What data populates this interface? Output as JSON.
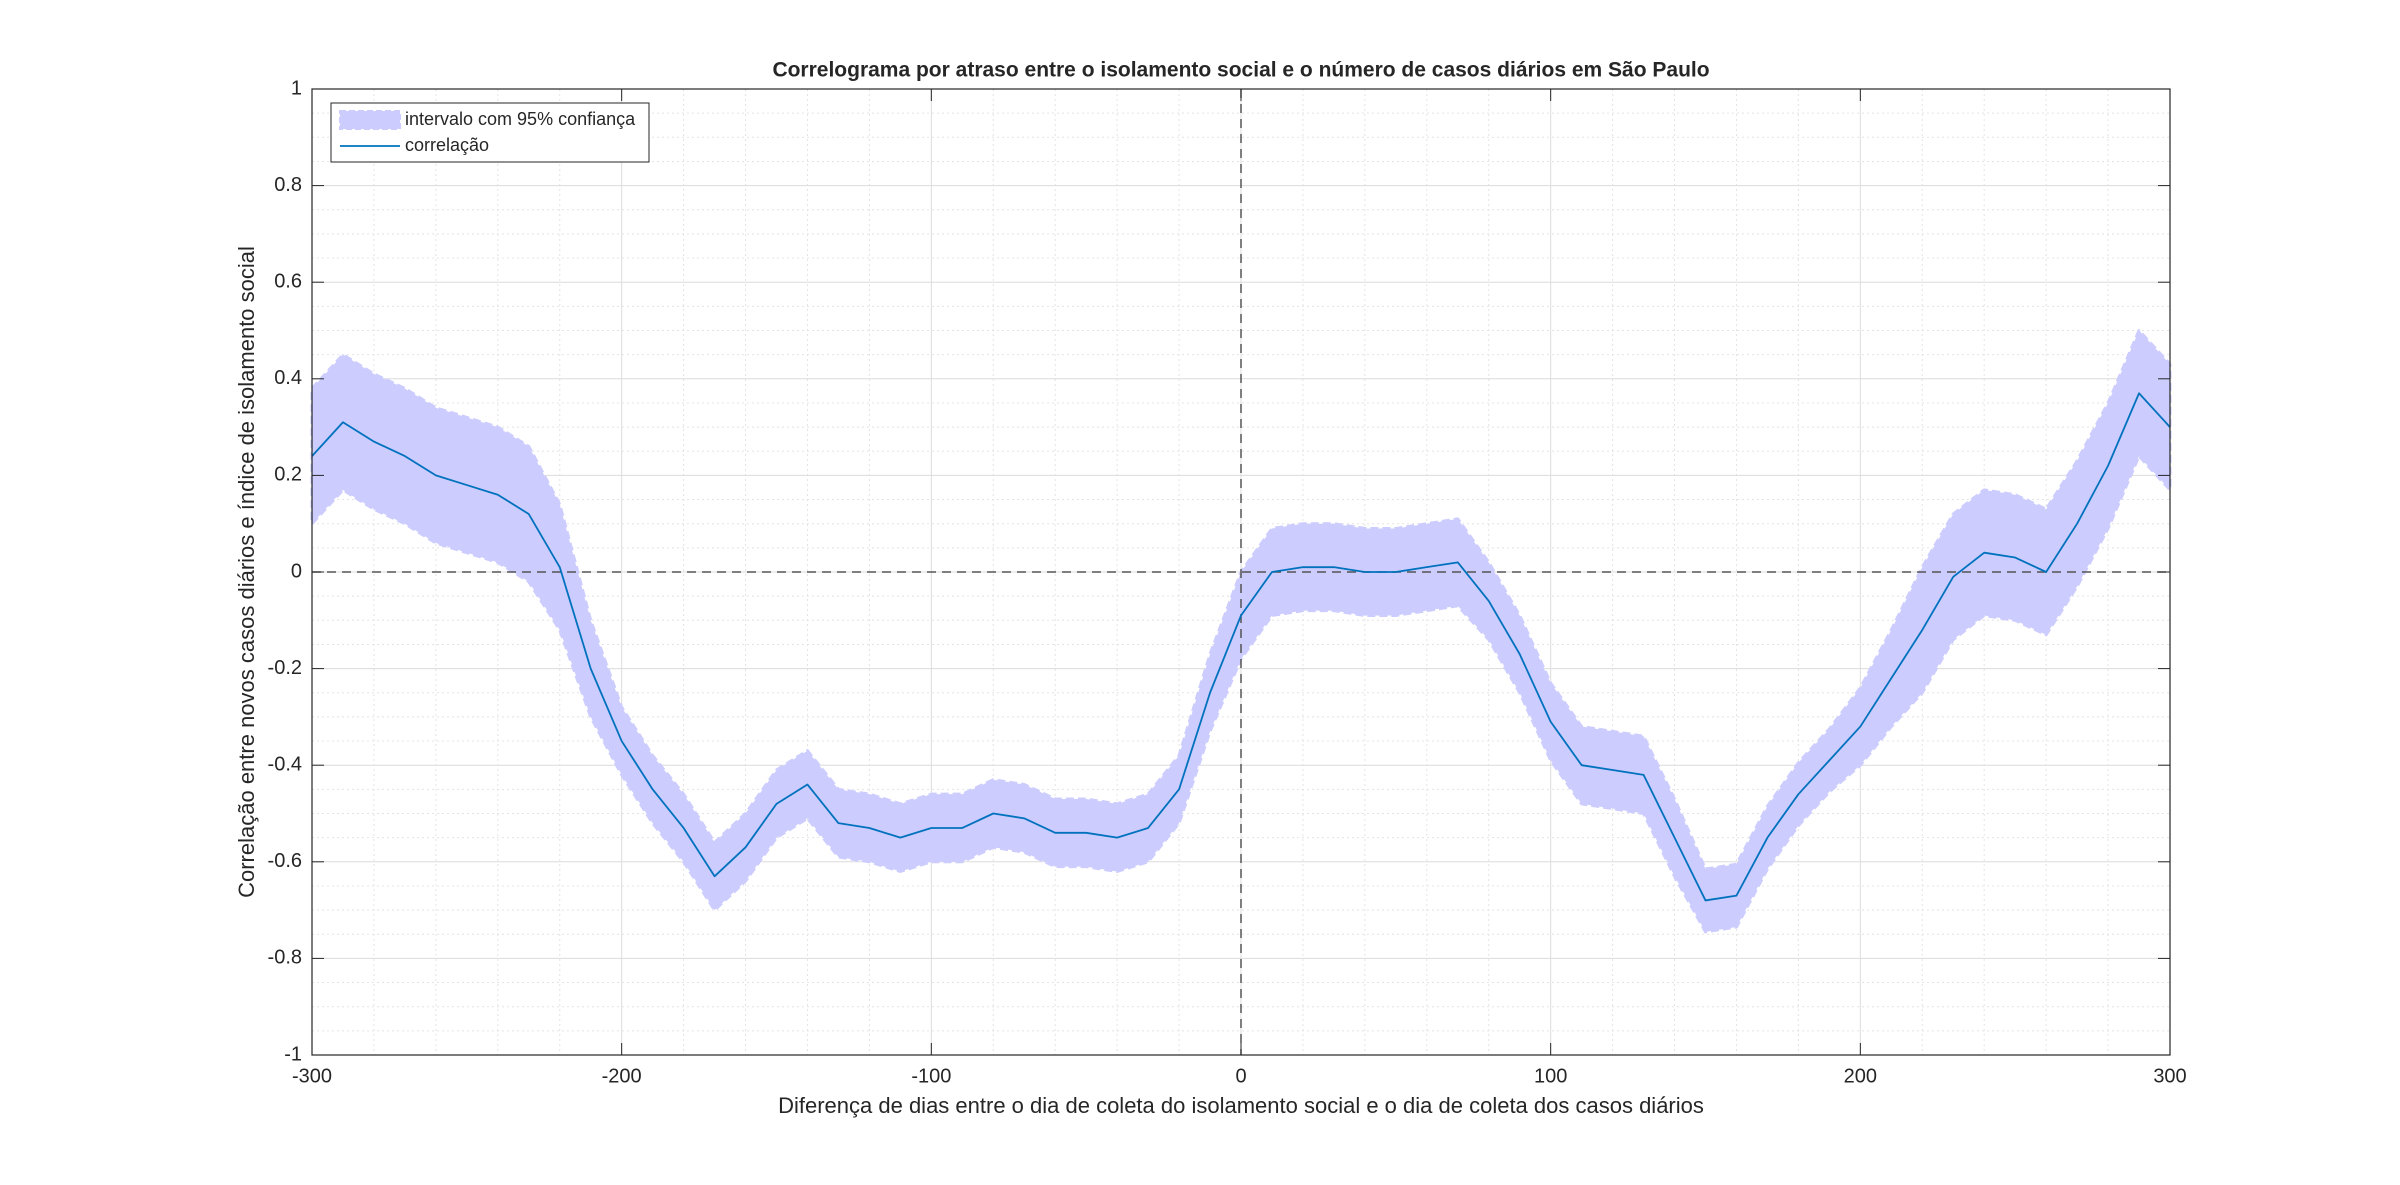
{
  "chart_data": {
    "type": "band-line",
    "title": "Correlograma por atraso entre o isolamento social e o número de casos diários em São Paulo",
    "xlabel": "Diferença de dias entre o dia de coleta do isolamento social e o dia de coleta dos casos diários",
    "ylabel": "Correlação entre novos casos diários e índice de isolamento social",
    "x": [
      -300,
      -290,
      -280,
      -270,
      -260,
      -250,
      -240,
      -230,
      -220,
      -210,
      -200,
      -190,
      -180,
      -170,
      -160,
      -150,
      -140,
      -130,
      -120,
      -110,
      -100,
      -90,
      -80,
      -70,
      -60,
      -50,
      -40,
      -30,
      -20,
      -10,
      0,
      10,
      20,
      30,
      40,
      50,
      60,
      70,
      80,
      90,
      100,
      110,
      120,
      130,
      140,
      150,
      160,
      170,
      180,
      190,
      200,
      210,
      220,
      230,
      240,
      250,
      260,
      270,
      280,
      290,
      300
    ],
    "series": [
      {
        "name": "intervalo com 95% confiança",
        "color": "#ccccff",
        "upper": [
          0.38,
          0.45,
          0.41,
          0.38,
          0.34,
          0.32,
          0.3,
          0.26,
          0.14,
          -0.1,
          -0.28,
          -0.38,
          -0.46,
          -0.56,
          -0.5,
          -0.41,
          -0.37,
          -0.45,
          -0.46,
          -0.48,
          -0.46,
          -0.46,
          -0.43,
          -0.44,
          -0.47,
          -0.47,
          -0.48,
          -0.46,
          -0.38,
          -0.17,
          0.0,
          0.09,
          0.1,
          0.1,
          0.09,
          0.09,
          0.1,
          0.11,
          0.02,
          -0.09,
          -0.23,
          -0.32,
          -0.33,
          -0.34,
          -0.47,
          -0.615,
          -0.605,
          -0.485,
          -0.395,
          -0.325,
          -0.24,
          -0.12,
          0.01,
          0.12,
          0.17,
          0.16,
          0.13,
          0.23,
          0.35,
          0.5,
          0.43
        ],
        "lower": [
          0.1,
          0.17,
          0.13,
          0.1,
          0.06,
          0.04,
          0.02,
          -0.02,
          -0.12,
          -0.3,
          -0.42,
          -0.52,
          -0.6,
          -0.7,
          -0.64,
          -0.55,
          -0.51,
          -0.59,
          -0.6,
          -0.62,
          -0.6,
          -0.6,
          -0.57,
          -0.58,
          -0.61,
          -0.61,
          -0.62,
          -0.6,
          -0.52,
          -0.33,
          -0.18,
          -0.09,
          -0.08,
          -0.08,
          -0.09,
          -0.09,
          -0.08,
          -0.07,
          -0.14,
          -0.25,
          -0.39,
          -0.48,
          -0.49,
          -0.5,
          -0.63,
          -0.745,
          -0.735,
          -0.615,
          -0.525,
          -0.455,
          -0.4,
          -0.32,
          -0.25,
          -0.14,
          -0.09,
          -0.1,
          -0.13,
          -0.03,
          0.09,
          0.24,
          0.17
        ]
      },
      {
        "name": "correlação",
        "color": "#0072bd",
        "values": [
          0.24,
          0.31,
          0.27,
          0.24,
          0.2,
          0.18,
          0.16,
          0.12,
          0.01,
          -0.2,
          -0.35,
          -0.45,
          -0.53,
          -0.63,
          -0.57,
          -0.48,
          -0.44,
          -0.52,
          -0.53,
          -0.55,
          -0.53,
          -0.53,
          -0.5,
          -0.51,
          -0.54,
          -0.54,
          -0.55,
          -0.53,
          -0.45,
          -0.25,
          -0.09,
          0.0,
          0.01,
          0.01,
          0.0,
          0.0,
          0.01,
          0.02,
          -0.06,
          -0.17,
          -0.31,
          -0.4,
          -0.41,
          -0.42,
          -0.55,
          -0.68,
          -0.67,
          -0.55,
          -0.46,
          -0.39,
          -0.32,
          -0.22,
          -0.12,
          -0.01,
          0.04,
          0.03,
          0.0,
          0.1,
          0.22,
          0.37,
          0.3
        ]
      }
    ],
    "xlim": [
      -300,
      300
    ],
    "ylim": [
      -1,
      1
    ],
    "xticks": [
      -300,
      -200,
      -100,
      0,
      100,
      200,
      300
    ],
    "yticks": [
      -1,
      -0.8,
      -0.6,
      -0.4,
      -0.2,
      0,
      0.2,
      0.4,
      0.6,
      0.8,
      1
    ],
    "hline": 0,
    "vline": 0,
    "grid": true,
    "minor_grid": true,
    "legend": "upper-left"
  }
}
